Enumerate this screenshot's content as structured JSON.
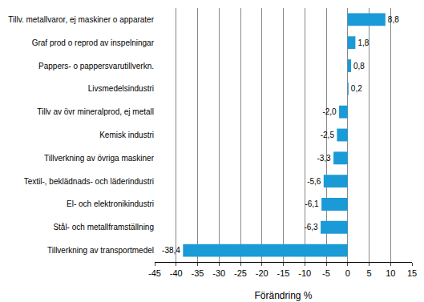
{
  "chart_data": {
    "type": "bar",
    "orientation": "horizontal",
    "categories": [
      "Tillv. metallvaror, ej maskiner o apparater",
      "Graf prod o reprod av inspelningar",
      "Pappers- o pappersvarutillverkn.",
      "Livsmedelsindustri",
      "Tillv av övr mineralprod, ej metall",
      "Kemisk industri",
      "Tillverkning av övriga maskiner",
      "Textil-, beklädnads- och läderindustri",
      "El- och elektronikindustri",
      "Stål- och metallframställning",
      "Tillverkning av transportmedel"
    ],
    "values": [
      8.8,
      1.8,
      0.8,
      0.2,
      -2.0,
      -2.5,
      -3.3,
      -5.6,
      -6.1,
      -6.3,
      -38.4
    ],
    "value_labels": [
      "8,8",
      "1,8",
      "0,8",
      "0,2",
      "-2,0",
      "-2,5",
      "-3,3",
      "-5,6",
      "-6,1",
      "-6,3",
      "-38,4"
    ],
    "data_labels": true,
    "color": "#1a9ad6",
    "x_label": "Förändring %",
    "xlim": [
      -45,
      15
    ],
    "xticks": [
      -45,
      -40,
      -35,
      -30,
      -25,
      -20,
      -15,
      -10,
      -5,
      0,
      5,
      10,
      15
    ],
    "grid": true
  }
}
